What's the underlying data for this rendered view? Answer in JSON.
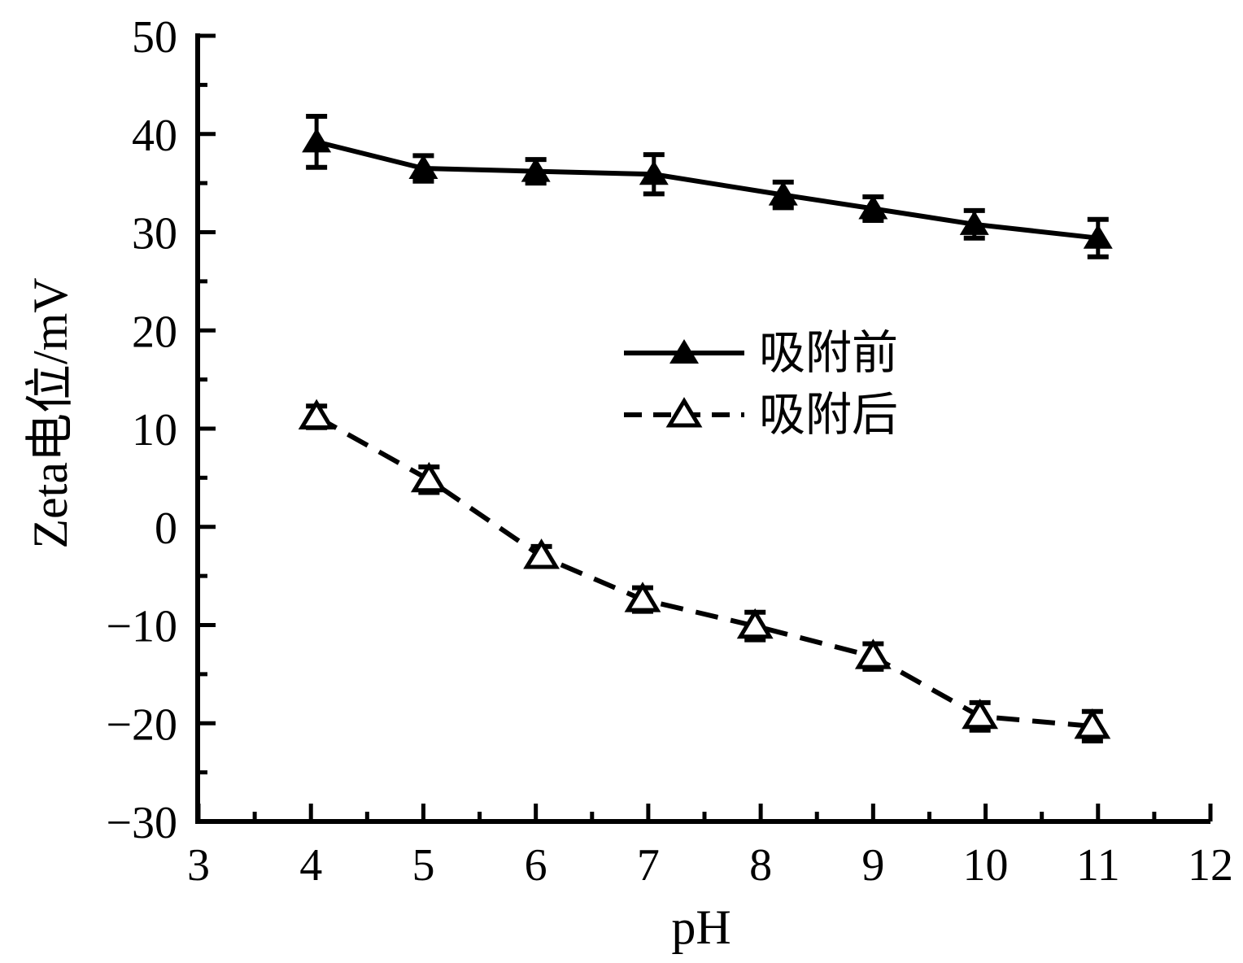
{
  "chart_data": {
    "type": "line",
    "title": "",
    "xlabel": "pH",
    "ylabel": "Zeta电位/mV",
    "xlim": [
      3,
      12
    ],
    "ylim": [
      -30,
      50
    ],
    "xticks": [
      3,
      4,
      5,
      6,
      7,
      8,
      9,
      10,
      11,
      12
    ],
    "xtick_labels": [
      "3",
      "4",
      "5",
      "6",
      "7",
      "8",
      "9",
      "10",
      "11",
      "12"
    ],
    "yticks": [
      50,
      40,
      30,
      20,
      10,
      0,
      -10,
      -20,
      -30
    ],
    "ytick_labels": [
      "50",
      "40",
      "30",
      "20",
      "10",
      "0",
      "−10",
      "−20",
      "−30"
    ],
    "x_minor_step": 0.5,
    "y_minor_step": 5,
    "grid": false,
    "background_color": "#ffffff",
    "axis_color": "#000000",
    "legend_position": "inside-center-right",
    "series": [
      {
        "name": "吸附前",
        "line": "solid",
        "marker": "filled-triangle",
        "color": "#000000",
        "x": [
          4.05,
          5.0,
          6.0,
          7.05,
          8.2,
          9.0,
          9.9,
          11.0
        ],
        "y": [
          39.2,
          36.5,
          36.2,
          35.9,
          33.8,
          32.4,
          30.8,
          29.4
        ],
        "yerr": [
          2.6,
          1.3,
          1.2,
          2.0,
          1.3,
          1.2,
          1.4,
          1.9
        ]
      },
      {
        "name": "吸附后",
        "line": "dashed",
        "marker": "open-triangle",
        "color": "#000000",
        "x": [
          4.05,
          5.05,
          6.05,
          6.95,
          7.95,
          9.0,
          9.95,
          10.95
        ],
        "y": [
          11.2,
          4.8,
          -3.0,
          -7.4,
          -10.1,
          -13.2,
          -19.3,
          -20.3
        ],
        "yerr": [
          1.1,
          1.3,
          1.0,
          1.2,
          1.4,
          1.3,
          1.4,
          1.5
        ]
      }
    ]
  }
}
